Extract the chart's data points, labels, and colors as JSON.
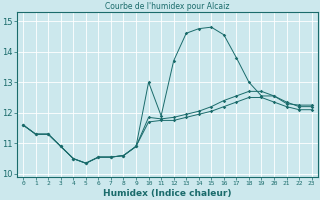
{
  "title": "Courbe de l'humidex pour Alcaiz",
  "xlabel": "Humidex (Indice chaleur)",
  "background_color": "#cce8ed",
  "grid_color": "#ffffff",
  "line_color": "#1a6b6b",
  "xlim": [
    -0.5,
    23.5
  ],
  "ylim": [
    9.9,
    15.3
  ],
  "yticks": [
    10,
    11,
    12,
    13,
    14,
    15
  ],
  "xticks": [
    0,
    1,
    2,
    3,
    4,
    5,
    6,
    7,
    8,
    9,
    10,
    11,
    12,
    13,
    14,
    15,
    16,
    17,
    18,
    19,
    20,
    21,
    22,
    23
  ],
  "main_y": [
    11.6,
    11.3,
    11.3,
    10.9,
    10.5,
    10.35,
    10.55,
    10.55,
    10.6,
    10.9,
    13.0,
    11.9,
    13.7,
    14.6,
    14.75,
    14.8,
    14.55,
    13.8,
    13.0,
    12.55,
    12.55,
    12.3,
    12.25,
    12.25
  ],
  "line2_y": [
    11.6,
    11.3,
    11.3,
    10.9,
    10.5,
    10.35,
    10.55,
    10.55,
    10.6,
    10.9,
    11.85,
    11.8,
    11.85,
    11.95,
    12.05,
    12.2,
    12.4,
    12.55,
    12.7,
    12.7,
    12.55,
    12.35,
    12.2,
    12.2
  ],
  "line3_y": [
    11.6,
    11.3,
    11.3,
    10.9,
    10.5,
    10.35,
    10.55,
    10.55,
    10.6,
    10.9,
    11.7,
    11.75,
    11.75,
    11.85,
    11.95,
    12.05,
    12.2,
    12.35,
    12.5,
    12.5,
    12.35,
    12.2,
    12.1,
    12.1
  ]
}
